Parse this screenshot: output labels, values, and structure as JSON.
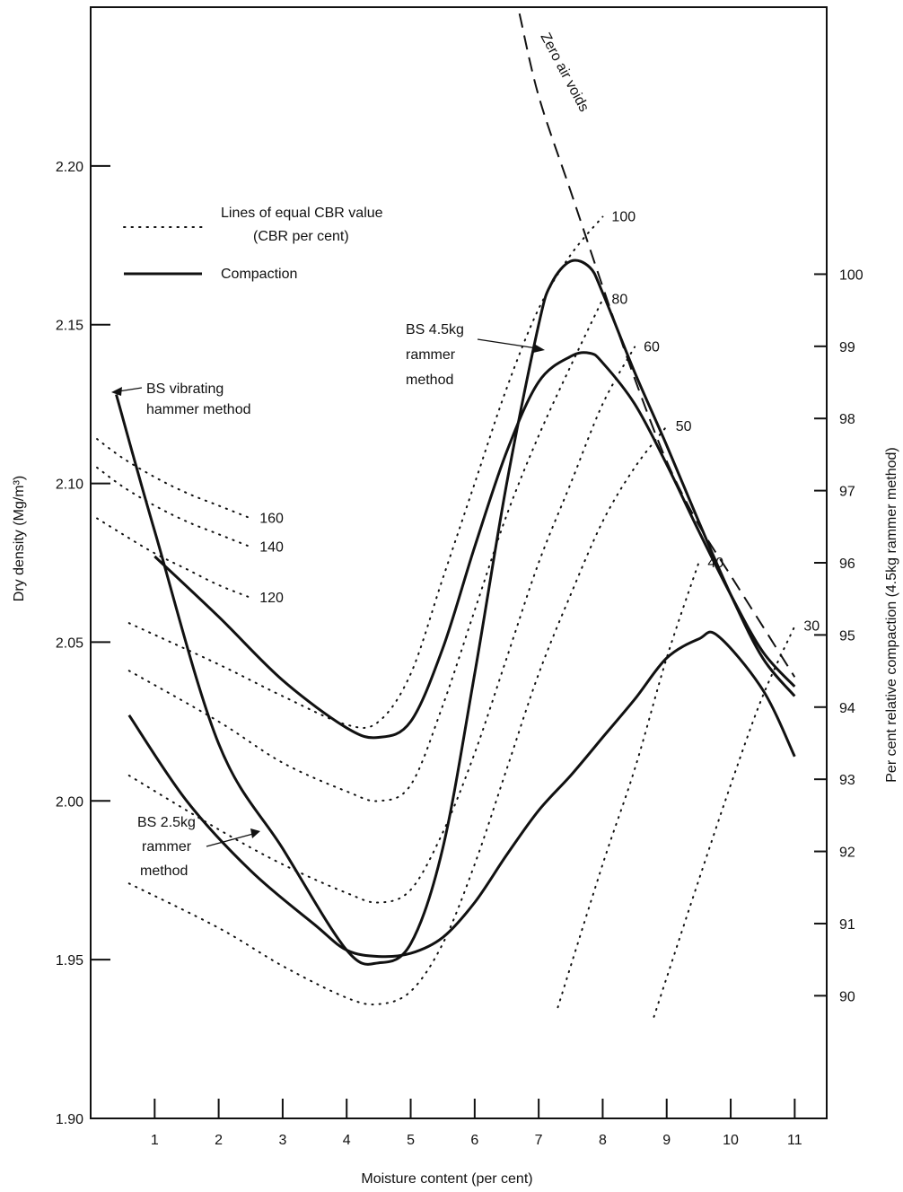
{
  "chart_data": {
    "type": "line",
    "title": "",
    "xlabel": "Moisture content (per cent)",
    "ylabel": "Dry density (Mg/m³)",
    "y2label": "Per cent relative compaction (4.5kg rammer method)",
    "xlim": [
      0,
      11.5
    ],
    "ylim": [
      1.9,
      2.25
    ],
    "y2lim": [
      88.3,
      103.7
    ],
    "x_ticks": [
      "1",
      "2",
      "3",
      "4",
      "5",
      "6",
      "7",
      "8",
      "9",
      "10",
      "11"
    ],
    "y_ticks": [
      "1.90",
      "1.95",
      "2.00",
      "2.05",
      "2.10",
      "2.15",
      "2.20"
    ],
    "y2_ticks": [
      "90",
      "91",
      "92",
      "93",
      "94",
      "95",
      "96",
      "97",
      "98",
      "99",
      "100"
    ],
    "grid": false,
    "legend": {
      "placement": "top-left",
      "entries": [
        {
          "label": "Lines of equal CBR value",
          "sublabel": "(CBR per cent)",
          "style": "dotted"
        },
        {
          "label": "Compaction",
          "style": "solid"
        }
      ]
    },
    "series": [
      {
        "name": "BS vibrating hammer method",
        "style": "solid",
        "x": [
          0.4,
          1.0,
          2.0,
          3.0,
          4.0,
          4.5,
          5.0,
          5.5,
          6.0,
          6.5,
          7.0,
          7.2,
          7.5,
          7.8,
          8.0,
          8.5,
          9.0,
          9.5,
          10.0,
          10.5,
          11.0
        ],
        "y": [
          2.128,
          2.085,
          2.018,
          1.985,
          1.953,
          1.949,
          1.955,
          1.985,
          2.04,
          2.1,
          2.15,
          2.163,
          2.17,
          2.168,
          2.16,
          2.135,
          2.112,
          2.088,
          2.065,
          2.045,
          2.033
        ]
      },
      {
        "name": "BS 4.5kg rammer method",
        "style": "solid",
        "x": [
          1.0,
          2.0,
          3.0,
          4.0,
          4.5,
          5.0,
          5.5,
          6.0,
          6.5,
          7.0,
          7.5,
          7.8,
          8.0,
          8.5,
          9.0,
          9.5,
          10.0,
          10.5,
          11.0
        ],
        "y": [
          2.077,
          2.058,
          2.038,
          2.023,
          2.02,
          2.025,
          2.048,
          2.08,
          2.11,
          2.132,
          2.14,
          2.141,
          2.138,
          2.125,
          2.106,
          2.085,
          2.065,
          2.047,
          2.036
        ]
      },
      {
        "name": "BS 2.5kg rammer method",
        "style": "solid",
        "x": [
          0.6,
          1.5,
          2.5,
          3.5,
          4.0,
          4.5,
          5.0,
          5.5,
          6.0,
          6.5,
          7.0,
          7.5,
          8.0,
          8.5,
          9.0,
          9.5,
          9.8,
          10.5,
          11.0
        ],
        "y": [
          2.027,
          2.0,
          1.978,
          1.961,
          1.953,
          1.951,
          1.952,
          1.957,
          1.968,
          1.983,
          1.997,
          2.008,
          2.02,
          2.032,
          2.045,
          2.051,
          2.052,
          2.035,
          2.014
        ]
      },
      {
        "name": "Zero air voids",
        "style": "dashed",
        "x": [
          6.7,
          7.0,
          7.5,
          8.0,
          8.5,
          9.0,
          9.5,
          10.0,
          10.5,
          11.0
        ],
        "y": [
          2.248,
          2.222,
          2.192,
          2.162,
          2.133,
          2.107,
          2.087,
          2.071,
          2.055,
          2.039
        ]
      }
    ],
    "cbr_lines": [
      {
        "label": "160",
        "x": [
          0.1,
          0.5,
          1.0,
          1.5,
          2.0,
          2.5
        ],
        "y": [
          2.114,
          2.108,
          2.102,
          2.097,
          2.093,
          2.089
        ]
      },
      {
        "label": "140",
        "x": [
          0.1,
          0.5,
          1.0,
          1.5,
          2.0,
          2.5
        ],
        "y": [
          2.105,
          2.099,
          2.093,
          2.088,
          2.084,
          2.08
        ]
      },
      {
        "label": "120",
        "x": [
          0.1,
          0.5,
          1.0,
          1.5,
          2.0,
          2.5
        ],
        "y": [
          2.089,
          2.084,
          2.078,
          2.073,
          2.068,
          2.064
        ]
      },
      {
        "label": "100",
        "x": [
          0.6,
          2.0,
          3.0,
          4.0,
          4.5,
          5.0,
          5.5,
          6.0,
          6.5,
          7.0,
          7.5,
          8.0
        ],
        "y": [
          2.056,
          2.043,
          2.033,
          2.024,
          2.025,
          2.04,
          2.07,
          2.1,
          2.13,
          2.155,
          2.172,
          2.184
        ]
      },
      {
        "label": "80",
        "x": [
          0.6,
          2.0,
          3.0,
          4.0,
          4.5,
          5.0,
          5.5,
          6.0,
          6.5,
          7.0,
          7.5,
          8.0
        ],
        "y": [
          2.041,
          2.025,
          2.012,
          2.003,
          2.0,
          2.005,
          2.03,
          2.06,
          2.09,
          2.115,
          2.137,
          2.158
        ]
      },
      {
        "label": "60",
        "x": [
          0.6,
          2.0,
          3.0,
          4.0,
          4.5,
          5.0,
          5.5,
          6.0,
          6.5,
          7.0,
          7.5,
          8.0,
          8.5
        ],
        "y": [
          2.008,
          1.991,
          1.98,
          1.971,
          1.968,
          1.972,
          1.99,
          2.015,
          2.045,
          2.075,
          2.1,
          2.125,
          2.143
        ]
      },
      {
        "label": "50",
        "x": [
          0.6,
          2.0,
          3.0,
          4.0,
          4.5,
          5.0,
          5.5,
          6.0,
          6.5,
          7.0,
          7.5,
          8.0,
          8.5,
          9.0
        ],
        "y": [
          1.974,
          1.96,
          1.948,
          1.938,
          1.936,
          1.94,
          1.955,
          1.98,
          2.01,
          2.04,
          2.065,
          2.088,
          2.105,
          2.118
        ]
      },
      {
        "label": "40",
        "x": [
          7.3,
          8.0,
          8.5,
          9.0,
          9.5
        ],
        "y": [
          1.935,
          1.98,
          2.01,
          2.045,
          2.075
        ]
      },
      {
        "label": "30",
        "x": [
          8.8,
          9.5,
          10.0,
          10.5,
          11.0
        ],
        "y": [
          1.932,
          1.975,
          2.005,
          2.033,
          2.055
        ]
      }
    ],
    "annotations": [
      {
        "lines": [
          "BS vibrating",
          "hammer method"
        ]
      },
      {
        "lines": [
          "BS 4.5kg",
          "rammer",
          "method"
        ]
      },
      {
        "lines": [
          "BS 2.5kg",
          "rammer",
          "method"
        ]
      },
      {
        "lines": [
          "Zero air voids"
        ]
      }
    ]
  }
}
